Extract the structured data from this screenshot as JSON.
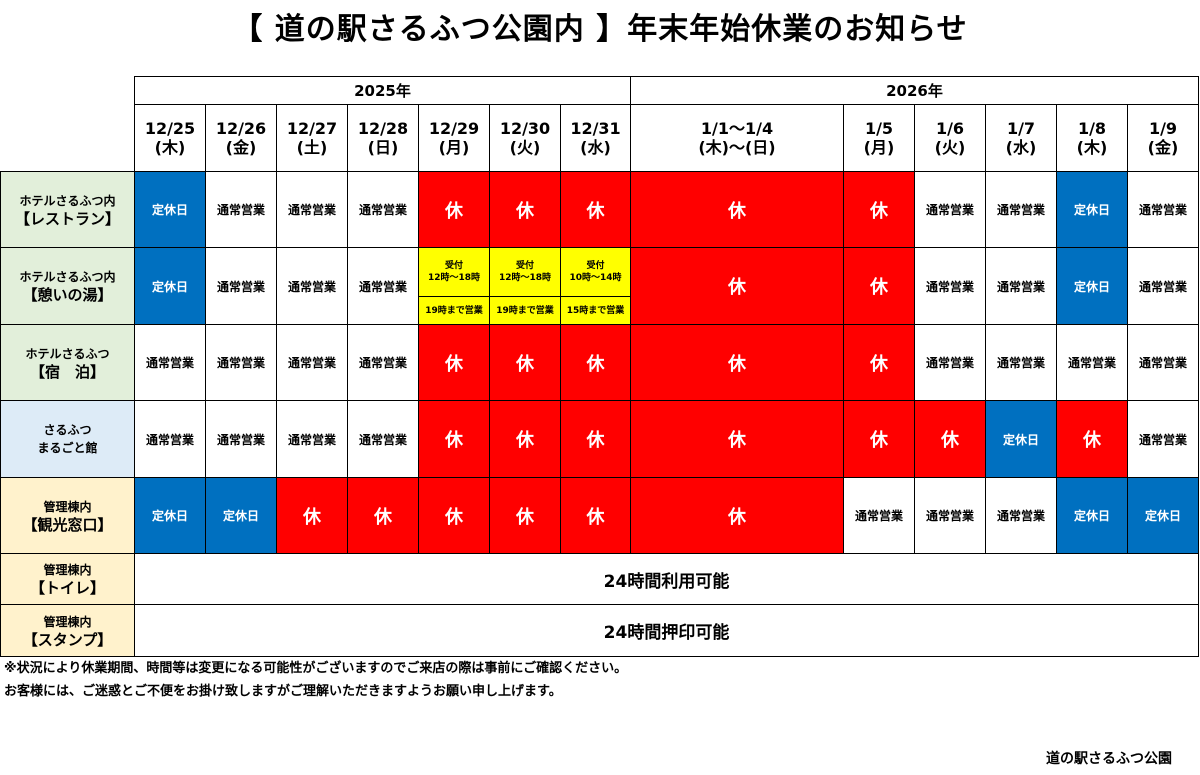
{
  "title": "【 道の駅さるふつ公園内 】年末年始休業のお知らせ",
  "years": [
    {
      "label": "2025年",
      "span": 7
    },
    {
      "label": "2026年",
      "span": 6
    }
  ],
  "dates": [
    {
      "date": "12/25",
      "dow": "(木)"
    },
    {
      "date": "12/26",
      "dow": "(金)"
    },
    {
      "date": "12/27",
      "dow": "(土)"
    },
    {
      "date": "12/28",
      "dow": "(日)"
    },
    {
      "date": "12/29",
      "dow": "(月)"
    },
    {
      "date": "12/30",
      "dow": "(火)"
    },
    {
      "date": "12/31",
      "dow": "(水)"
    },
    {
      "date": "1/1～1/4",
      "dow": "(木)～(日)"
    },
    {
      "date": "1/5",
      "dow": "(月)"
    },
    {
      "date": "1/6",
      "dow": "(火)"
    },
    {
      "date": "1/7",
      "dow": "(水)"
    },
    {
      "date": "1/8",
      "dow": "(木)"
    },
    {
      "date": "1/9",
      "dow": "(金)"
    }
  ],
  "status_labels": {
    "open": "通常営業",
    "closed": "休",
    "regular": "定休日"
  },
  "colors": {
    "closed": "#ff0000",
    "regular_holiday": "#0070c0",
    "special_hours": "#ffff00"
  },
  "rows": [
    {
      "line1": "ホテルさるふつ内",
      "line2": "【レストラン】",
      "bg": "g",
      "cells": [
        "regular",
        "open",
        "open",
        "open",
        "closed",
        "closed",
        "closed",
        "closed",
        "closed",
        "open",
        "open",
        "regular",
        "open"
      ]
    },
    {
      "line1": "ホテルさるふつ内",
      "line2": "【憩いの湯】",
      "bg": "g",
      "cells": [
        "regular",
        "open",
        "open",
        "open",
        {
          "top1": "受付",
          "top2": "12時～18時",
          "bottom": "19時まで営業"
        },
        {
          "top1": "受付",
          "top2": "12時～18時",
          "bottom": "19時まで営業"
        },
        {
          "top1": "受付",
          "top2": "10時～14時",
          "bottom": "15時まで営業"
        },
        "closed",
        "closed",
        "open",
        "open",
        "regular",
        "open"
      ]
    },
    {
      "line1": "ホテルさるふつ",
      "line2": "【宿　泊】",
      "bg": "g",
      "cells": [
        "open",
        "open",
        "open",
        "open",
        "closed",
        "closed",
        "closed",
        "closed",
        "closed",
        "open",
        "open",
        "open",
        "open"
      ]
    },
    {
      "line1": "さるふつ",
      "line2": "まるごと館",
      "bg": "b",
      "small2": true,
      "cells": [
        "open",
        "open",
        "open",
        "open",
        "closed",
        "closed",
        "closed",
        "closed",
        "closed",
        "closed",
        "regular",
        "closed",
        "open"
      ]
    },
    {
      "line1": "管理棟内",
      "line2": "【観光窓口】",
      "bg": "c",
      "cells": [
        "regular",
        "regular",
        "closed",
        "closed",
        "closed",
        "closed",
        "closed",
        "closed",
        "open",
        "open",
        "open",
        "regular",
        "regular"
      ]
    },
    {
      "line1": "管理棟内",
      "line2": "【トイレ】",
      "bg": "c",
      "full": "24時間利用可能"
    },
    {
      "line1": "管理棟内",
      "line2": "【スタンプ】",
      "bg": "c",
      "full": "24時間押印可能"
    }
  ],
  "notes": [
    "※状況により休業期間、時間等は変更になる可能性がございますのでご来店の際は事前にご確認ください。",
    "お客様には、ご迷惑とご不便をお掛け致しますがご理解いただきますようお願い申し上げます。"
  ],
  "signature": "道の駅さるふつ公園"
}
